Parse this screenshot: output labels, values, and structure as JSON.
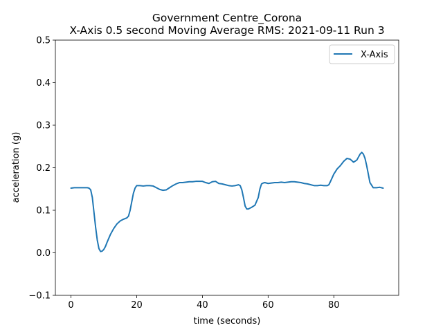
{
  "chart_data": {
    "type": "line",
    "title": "Government Centre_Corona",
    "subtitle": "X-Axis 0.5 second Moving Average RMS: 2021-09-11 Run 3",
    "xlabel": "time (seconds)",
    "ylabel": "acceleration (g)",
    "xlim": [
      -4.75,
      99.75
    ],
    "ylim": [
      -0.1,
      0.5
    ],
    "xticks": [
      0,
      20,
      40,
      60,
      80
    ],
    "yticks": [
      -0.1,
      0.0,
      0.1,
      0.2,
      0.3,
      0.4,
      0.5
    ],
    "ytick_labels": [
      "−0.1",
      "0.0",
      "0.1",
      "0.2",
      "0.3",
      "0.4",
      "0.5"
    ],
    "grid": false,
    "legend_position": "top-right",
    "series": [
      {
        "name": "X-Axis",
        "color": "#1f77b4",
        "x": [
          0,
          1,
          2,
          3,
          4,
          5,
          5.5,
          6,
          6.5,
          7,
          7.5,
          8,
          8.5,
          9,
          9.5,
          10,
          10.5,
          11,
          12,
          13,
          14,
          15,
          16,
          17,
          17.5,
          18,
          18.5,
          19,
          19.5,
          20,
          21,
          22,
          23,
          24,
          25,
          26,
          27,
          28,
          29,
          30,
          31,
          32,
          33,
          34,
          35,
          36,
          37,
          38,
          39,
          40,
          41,
          42,
          43,
          44,
          45,
          46,
          47,
          48,
          49,
          50,
          51,
          51.5,
          52,
          52.5,
          53,
          53.5,
          54,
          54.5,
          55,
          56,
          57,
          57.5,
          58,
          58.5,
          59,
          59.5,
          60,
          61,
          62,
          63,
          64,
          65,
          66,
          67,
          68,
          69,
          70,
          71,
          72,
          73,
          74,
          75,
          76,
          77,
          78,
          78.5,
          79,
          80,
          81,
          82,
          83,
          84,
          85,
          86,
          87,
          88,
          88.5,
          89,
          89.5,
          90,
          90.5,
          91,
          92,
          93,
          94,
          95
        ],
        "y": [
          0.152,
          0.153,
          0.153,
          0.153,
          0.153,
          0.153,
          0.152,
          0.148,
          0.13,
          0.095,
          0.06,
          0.03,
          0.01,
          0.003,
          0.004,
          0.008,
          0.015,
          0.025,
          0.043,
          0.057,
          0.068,
          0.075,
          0.079,
          0.082,
          0.086,
          0.1,
          0.12,
          0.14,
          0.152,
          0.158,
          0.158,
          0.157,
          0.158,
          0.158,
          0.157,
          0.153,
          0.149,
          0.147,
          0.148,
          0.153,
          0.158,
          0.162,
          0.165,
          0.165,
          0.166,
          0.167,
          0.167,
          0.168,
          0.168,
          0.168,
          0.165,
          0.163,
          0.167,
          0.168,
          0.163,
          0.162,
          0.16,
          0.158,
          0.157,
          0.158,
          0.16,
          0.158,
          0.148,
          0.13,
          0.11,
          0.103,
          0.103,
          0.105,
          0.107,
          0.112,
          0.13,
          0.15,
          0.162,
          0.164,
          0.165,
          0.164,
          0.163,
          0.164,
          0.165,
          0.165,
          0.166,
          0.165,
          0.166,
          0.167,
          0.167,
          0.166,
          0.165,
          0.163,
          0.162,
          0.16,
          0.158,
          0.158,
          0.159,
          0.158,
          0.158,
          0.16,
          0.168,
          0.185,
          0.197,
          0.205,
          0.215,
          0.222,
          0.22,
          0.213,
          0.218,
          0.232,
          0.236,
          0.232,
          0.222,
          0.205,
          0.185,
          0.165,
          0.153,
          0.153,
          0.154,
          0.152
        ]
      }
    ]
  }
}
